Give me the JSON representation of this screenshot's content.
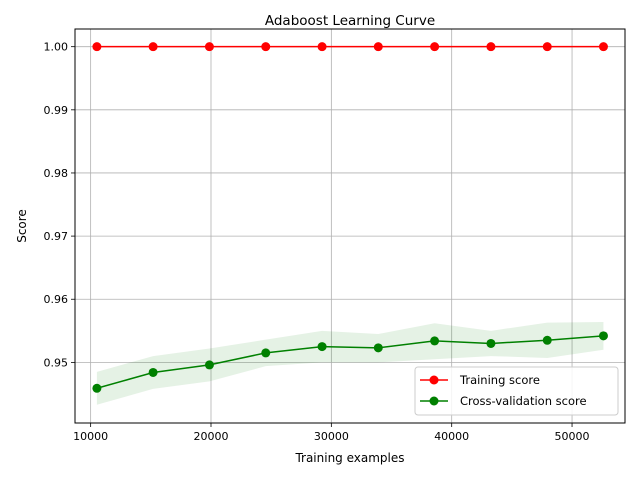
{
  "chart_data": {
    "type": "line",
    "title": "Adaboost Learning Curve",
    "xlabel": "Training examples",
    "ylabel": "Score",
    "xlim": [
      8700,
      54400
    ],
    "ylim": [
      0.9404,
      1.0028
    ],
    "xticks": [
      10000,
      20000,
      30000,
      40000,
      50000
    ],
    "xtick_labels": [
      "10000",
      "20000",
      "30000",
      "40000",
      "50000"
    ],
    "yticks": [
      0.95,
      0.96,
      0.97,
      0.98,
      0.99,
      1.0
    ],
    "ytick_labels": [
      "0.95",
      "0.96",
      "0.97",
      "0.98",
      "0.99",
      "1.00"
    ],
    "grid": true,
    "legend_position": "lower-right",
    "x": [
      10520,
      15190,
      19870,
      24550,
      29230,
      33900,
      38580,
      43260,
      47940,
      52610
    ],
    "series": [
      {
        "name": "Training score",
        "color": "#ff0000",
        "marker": "circle",
        "values": [
          1.0,
          1.0,
          1.0,
          1.0,
          1.0,
          1.0,
          1.0,
          1.0,
          1.0,
          1.0
        ],
        "band_lower": [
          1.0,
          1.0,
          1.0,
          1.0,
          1.0,
          1.0,
          1.0,
          1.0,
          1.0,
          1.0
        ],
        "band_upper": [
          1.0,
          1.0,
          1.0,
          1.0,
          1.0,
          1.0,
          1.0,
          1.0,
          1.0,
          1.0
        ],
        "band_color": "#ff0000"
      },
      {
        "name": "Cross-validation score",
        "color": "#008000",
        "marker": "circle",
        "values": [
          0.9459,
          0.9484,
          0.9496,
          0.9515,
          0.9525,
          0.9523,
          0.9534,
          0.953,
          0.9535,
          0.9542
        ],
        "band_lower": [
          0.9433,
          0.9458,
          0.947,
          0.9494,
          0.95,
          0.95,
          0.9505,
          0.951,
          0.9507,
          0.952
        ],
        "band_upper": [
          0.9485,
          0.951,
          0.9522,
          0.9536,
          0.955,
          0.9545,
          0.9562,
          0.955,
          0.9563,
          0.9564
        ],
        "band_color": "#008000"
      }
    ]
  }
}
